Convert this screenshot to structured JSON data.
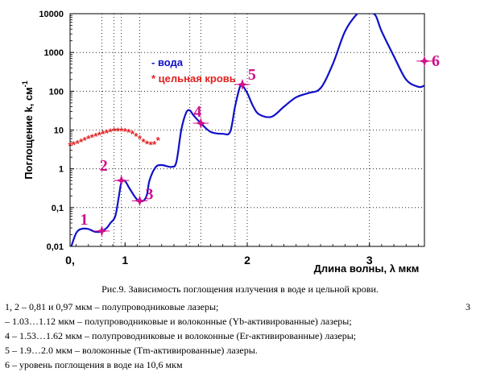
{
  "chart_data": {
    "type": "line",
    "xlabel": "Длина волны, λ мкм",
    "ylabel": "Поглощение k, см",
    "ylabel_superscript": "-1",
    "y_scale": "log",
    "ylim": [
      0.01,
      10000
    ],
    "xlim": [
      0.55,
      3.45
    ],
    "grid": "dotted",
    "x_ticks": [
      {
        "value": 0.55,
        "label": "0,"
      },
      {
        "value": 1.0,
        "label": "1"
      },
      {
        "value": 2.0,
        "label": "2"
      },
      {
        "value": 3.0,
        "label": "3"
      }
    ],
    "y_ticks": [
      {
        "value": 0.01,
        "label": "0,01"
      },
      {
        "value": 0.1,
        "label": "0,1"
      },
      {
        "value": 1,
        "label": "1"
      },
      {
        "value": 10,
        "label": "10"
      },
      {
        "value": 100,
        "label": "100"
      },
      {
        "value": 1000,
        "label": "1000"
      },
      {
        "value": 10000,
        "label": "10000"
      }
    ],
    "vertical_lines_x": [
      0.81,
      0.91,
      0.97,
      1.12,
      1.53,
      1.62,
      1.9,
      2.0,
      3.0
    ],
    "legend": {
      "placement": "top-center",
      "entries": [
        {
          "symbol": "-",
          "label": "вода",
          "color": "#1010c8"
        },
        {
          "symbol": "*",
          "label": "цельная кровь",
          "color": "#e02020"
        }
      ]
    },
    "series": [
      {
        "name": "вода",
        "style": "line",
        "color": "#1010c8",
        "points": [
          [
            0.56,
            0.01
          ],
          [
            0.6,
            0.022
          ],
          [
            0.64,
            0.028
          ],
          [
            0.7,
            0.028
          ],
          [
            0.75,
            0.024
          ],
          [
            0.8,
            0.024
          ],
          [
            0.85,
            0.03
          ],
          [
            0.88,
            0.04
          ],
          [
            0.92,
            0.06
          ],
          [
            0.95,
            0.2
          ],
          [
            0.97,
            0.45
          ],
          [
            1.0,
            0.48
          ],
          [
            1.04,
            0.3
          ],
          [
            1.1,
            0.16
          ],
          [
            1.15,
            0.15
          ],
          [
            1.18,
            0.22
          ],
          [
            1.2,
            0.5
          ],
          [
            1.25,
            1.1
          ],
          [
            1.3,
            1.25
          ],
          [
            1.38,
            1.12
          ],
          [
            1.42,
            1.5
          ],
          [
            1.46,
            10
          ],
          [
            1.5,
            28
          ],
          [
            1.53,
            32
          ],
          [
            1.56,
            24
          ],
          [
            1.62,
            15
          ],
          [
            1.7,
            9
          ],
          [
            1.8,
            8
          ],
          [
            1.86,
            9
          ],
          [
            1.9,
            40
          ],
          [
            1.94,
            130
          ],
          [
            1.96,
            140
          ],
          [
            2.0,
            90
          ],
          [
            2.05,
            40
          ],
          [
            2.1,
            25
          ],
          [
            2.2,
            22
          ],
          [
            2.3,
            40
          ],
          [
            2.4,
            70
          ],
          [
            2.5,
            90
          ],
          [
            2.6,
            120
          ],
          [
            2.7,
            500
          ],
          [
            2.8,
            3500
          ],
          [
            2.9,
            10000
          ],
          [
            2.95,
            11500
          ],
          [
            3.0,
            10500
          ],
          [
            3.05,
            9000
          ],
          [
            3.1,
            3500
          ],
          [
            3.2,
            800
          ],
          [
            3.3,
            200
          ],
          [
            3.4,
            130
          ],
          [
            3.45,
            140
          ]
        ]
      },
      {
        "name": "цельная кровь",
        "style": "star-markers",
        "color": "#e02020",
        "points": [
          [
            0.55,
            4
          ],
          [
            0.58,
            4.2
          ],
          [
            0.61,
            4.5
          ],
          [
            0.64,
            5
          ],
          [
            0.67,
            5.5
          ],
          [
            0.7,
            6
          ],
          [
            0.73,
            6.5
          ],
          [
            0.76,
            7
          ],
          [
            0.79,
            7.5
          ],
          [
            0.82,
            8
          ],
          [
            0.85,
            8.5
          ],
          [
            0.88,
            9
          ],
          [
            0.91,
            9.5
          ],
          [
            0.94,
            9.6
          ],
          [
            0.97,
            9.6
          ],
          [
            1.0,
            9.3
          ],
          [
            1.03,
            8.8
          ],
          [
            1.06,
            8
          ],
          [
            1.09,
            7
          ],
          [
            1.12,
            6
          ],
          [
            1.15,
            5
          ],
          [
            1.18,
            4.4
          ],
          [
            1.21,
            4.2
          ],
          [
            1.24,
            4.3
          ],
          [
            1.27,
            5.5
          ]
        ]
      }
    ],
    "annotations": [
      {
        "label": "1",
        "x": 0.81,
        "y": 0.025
      },
      {
        "label": "2",
        "x": 0.97,
        "y": 0.5
      },
      {
        "label": "3",
        "x": 1.12,
        "y": 0.15
      },
      {
        "label": "4",
        "x": 1.62,
        "y": 15
      },
      {
        "label": "5",
        "x": 1.96,
        "y": 150
      },
      {
        "label": "6",
        "x": 3.45,
        "y": 600
      }
    ]
  },
  "colors": {
    "water": "#1010c8",
    "blood": "#e02020",
    "marker": "#d0108a",
    "annotation_text": "#d0108a"
  },
  "caption": {
    "title": "Рис.9. Зависимость поглощения излучения в воде и цельной крови.",
    "lines": [
      "1, 2 –  0,81 и 0,97 мкм – полупроводниковые лазеры;",
      "– 1.03…1.12 мкм – полупроводниковые и волоконные (Yb-активированные) лазеры;",
      "4 – 1.53…1.62 мкм – полупроводниковые и волоконные (Er-активированные) лазеры;",
      "5 – 1.9…2.0 мкм – волоконные (Tm-активированные) лазеры.",
      "6 – уровень поглощения в воде на 10,6 мкм"
    ],
    "side_number": "3"
  }
}
